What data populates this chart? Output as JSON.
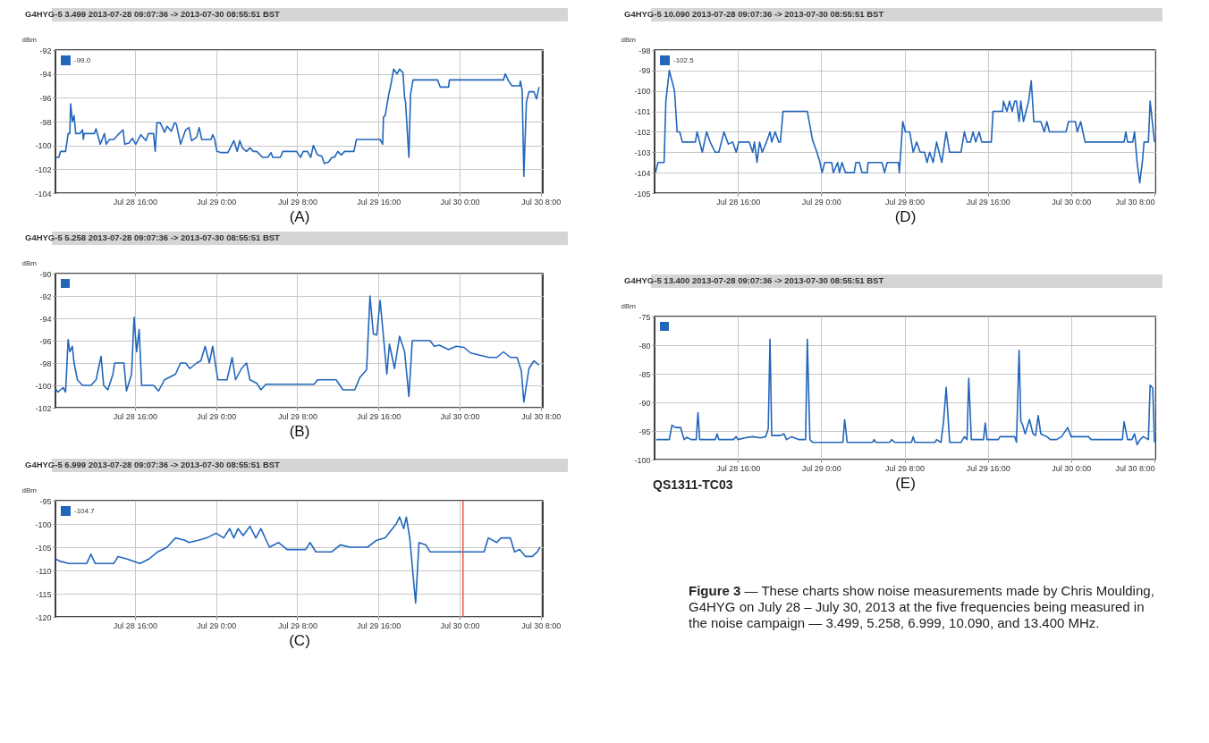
{
  "chart_data": [
    {
      "type": "line",
      "title": "G4HYG-5 3.499 2013-07-28 09:07:36 -> 2013-07-30 08:55:51 BST",
      "ylabel": "dBm",
      "xlabel": "(A)",
      "grid": true,
      "legend": "top left",
      "xlim": [
        "2013-07-28T08:10",
        "2013-07-30T08:12"
      ],
      "ylim": [
        -104,
        -92
      ],
      "yticks": [
        -104,
        -102,
        -100,
        -98,
        -96,
        -94,
        -92
      ],
      "xticks": [
        {
          "value": "2013-07-28T16:00",
          "label": "Jul 28 16:00"
        },
        {
          "value": "2013-07-29T00:00",
          "label": "Jul 29 0:00"
        },
        {
          "value": "2013-07-29T08:00",
          "label": "Jul 29 8:00"
        },
        {
          "value": "2013-07-29T16:00",
          "label": "Jul 29 16:00"
        },
        {
          "value": "2013-07-30T00:00",
          "label": "Jul 30 0:00"
        },
        {
          "value": "2013-07-30T08:00",
          "label": "Jul 30 8:00"
        }
      ],
      "series": [
        {
          "name": "-99.0",
          "color": "#2266bb",
          "x": [
            "2013-07-28T08:10",
            "2013-07-28T08:30",
            "2013-07-28T08:40",
            "2013-07-28T09:10",
            "2013-07-28T09:25",
            "2013-07-28T09:35",
            "2013-07-28T09:40",
            "2013-07-28T09:50",
            "2013-07-28T10:00",
            "2013-07-28T10:10",
            "2013-07-28T10:35",
            "2013-07-28T10:50",
            "2013-07-28T10:55",
            "2013-07-28T11:00",
            "2013-07-28T12:00",
            "2013-07-28T12:10",
            "2013-07-28T12:35",
            "2013-07-28T13:00",
            "2013-07-28T13:10",
            "2013-07-28T13:30",
            "2013-07-28T13:55",
            "2013-07-28T14:20",
            "2013-07-28T14:50",
            "2013-07-28T15:00",
            "2013-07-28T15:25",
            "2013-07-28T15:45",
            "2013-07-28T16:05",
            "2013-07-28T16:35",
            "2013-07-28T17:05",
            "2013-07-28T17:20",
            "2013-07-28T17:50",
            "2013-07-28T18:00",
            "2013-07-28T18:10",
            "2013-07-28T18:30",
            "2013-07-28T18:55",
            "2013-07-28T19:10",
            "2013-07-28T19:35",
            "2013-07-28T19:55",
            "2013-07-28T20:05",
            "2013-07-28T20:30",
            "2013-07-28T21:00",
            "2013-07-28T21:20",
            "2013-07-28T21:35",
            "2013-07-28T22:05",
            "2013-07-28T22:20",
            "2013-07-28T22:35",
            "2013-07-28T23:30",
            "2013-07-28T23:40",
            "2013-07-28T23:50",
            "2013-07-29T00:05",
            "2013-07-29T00:30",
            "2013-07-29T01:10",
            "2013-07-29T01:45",
            "2013-07-29T02:05",
            "2013-07-29T02:20",
            "2013-07-29T02:35",
            "2013-07-29T03:00",
            "2013-07-29T03:20",
            "2013-07-29T03:40",
            "2013-07-29T04:00",
            "2013-07-29T04:35",
            "2013-07-29T05:05",
            "2013-07-29T05:25",
            "2013-07-29T05:35",
            "2013-07-29T06:20",
            "2013-07-29T06:35",
            "2013-07-29T07:55",
            "2013-07-29T08:20",
            "2013-07-29T08:35",
            "2013-07-29T09:00",
            "2013-07-29T09:20",
            "2013-07-29T09:35",
            "2013-07-29T10:00",
            "2013-07-29T10:25",
            "2013-07-29T10:40",
            "2013-07-29T11:05",
            "2013-07-29T11:25",
            "2013-07-29T11:40",
            "2013-07-29T12:00",
            "2013-07-29T12:20",
            "2013-07-29T12:40",
            "2013-07-29T13:35",
            "2013-07-29T13:50",
            "2013-07-29T16:10",
            "2013-07-29T16:25",
            "2013-07-29T16:30",
            "2013-07-29T16:40",
            "2013-07-29T17:00",
            "2013-07-29T17:15",
            "2013-07-29T17:30",
            "2013-07-29T17:50",
            "2013-07-29T18:05",
            "2013-07-29T18:25",
            "2013-07-29T18:35",
            "2013-07-29T18:40",
            "2013-07-29T19:00",
            "2013-07-29T19:10",
            "2013-07-29T19:25",
            "2013-07-29T21:50",
            "2013-07-29T22:05",
            "2013-07-29T22:55",
            "2013-07-29T23:00",
            "2013-07-30T04:20",
            "2013-07-30T04:30",
            "2013-07-30T04:50",
            "2013-07-30T05:10",
            "2013-07-30T05:55",
            "2013-07-30T06:00",
            "2013-07-30T06:10",
            "2013-07-30T06:20",
            "2013-07-30T06:35",
            "2013-07-30T06:50",
            "2013-07-30T07:20",
            "2013-07-30T07:35",
            "2013-07-30T07:50"
          ],
          "values": [
            -101.0,
            -101.0,
            -100.5,
            -100.5,
            -99.0,
            -99.0,
            -96.5,
            -98.0,
            -97.5,
            -99.0,
            -99.0,
            -98.7,
            -99.5,
            -99.0,
            -99.0,
            -98.6,
            -99.9,
            -99.0,
            -99.9,
            -99.5,
            -99.5,
            -99.1,
            -98.7,
            -99.9,
            -99.8,
            -99.4,
            -99.9,
            -99.1,
            -99.6,
            -99.0,
            -99.0,
            -100.5,
            -98.1,
            -98.1,
            -98.9,
            -98.4,
            -98.8,
            -98.1,
            -98.2,
            -99.9,
            -98.7,
            -98.5,
            -99.6,
            -99.3,
            -98.5,
            -99.5,
            -99.5,
            -99.1,
            -99.4,
            -100.5,
            -100.6,
            -100.6,
            -99.6,
            -100.5,
            -99.6,
            -100.2,
            -100.5,
            -100.2,
            -100.5,
            -100.5,
            -101.0,
            -101.0,
            -100.6,
            -101.0,
            -101.0,
            -100.5,
            -100.5,
            -101.0,
            -100.5,
            -100.5,
            -101.0,
            -100.0,
            -100.8,
            -100.9,
            -101.5,
            -101.4,
            -101.0,
            -101.0,
            -100.5,
            -100.8,
            -100.5,
            -100.5,
            -99.5,
            -99.5,
            -99.9,
            -97.6,
            -97.5,
            -95.8,
            -94.8,
            -93.6,
            -94.0,
            -93.6,
            -93.9,
            -96.0,
            -96.3,
            -101.0,
            -95.7,
            -94.5,
            -94.5,
            -95.1,
            -95.1,
            -94.5,
            -94.5,
            -94.0,
            -94.6,
            -95.0,
            -95.0,
            -94.6,
            -95.4,
            -102.6,
            -96.4,
            -95.5,
            -95.5,
            -96.1,
            -95.1
          ]
        }
      ]
    },
    {
      "type": "line",
      "title": "G4HYG-5 5.258 2013-07-28 09:07:36 -> 2013-07-30 08:55:51 BST",
      "ylabel": "dBm",
      "xlabel": "(B)",
      "grid": true,
      "xlim": [
        "2013-07-28T08:10",
        "2013-07-30T08:12"
      ],
      "ylim": [
        -102,
        -90
      ],
      "yticks": [
        -102,
        -100,
        -98,
        -96,
        -94,
        -92,
        -90
      ],
      "xticks": [
        {
          "value": "2013-07-28T16:00",
          "label": "Jul 28 16:00"
        },
        {
          "value": "2013-07-29T00:00",
          "label": "Jul 29 0:00"
        },
        {
          "value": "2013-07-29T08:00",
          "label": "Jul 29 8:00"
        },
        {
          "value": "2013-07-29T16:00",
          "label": "Jul 29 16:00"
        },
        {
          "value": "2013-07-30T00:00",
          "label": "Jul 30 0:00"
        },
        {
          "value": "2013-07-30T08:00",
          "label": "Jul 30 8:00"
        }
      ],
      "series": [
        {
          "color": "#2266bb",
          "x": [
            "2013-07-28T08:10",
            "2013-07-28T08:25",
            "2013-07-28T08:55",
            "2013-07-28T09:10",
            "2013-07-28T09:25",
            "2013-07-28T09:35",
            "2013-07-28T09:50",
            "2013-07-28T10:00",
            "2013-07-28T10:20",
            "2013-07-28T10:50",
            "2013-07-28T11:40",
            "2013-07-28T12:10",
            "2013-07-28T12:40",
            "2013-07-28T12:55",
            "2013-07-28T13:20",
            "2013-07-28T13:50",
            "2013-07-28T14:00",
            "2013-07-28T14:55",
            "2013-07-28T15:10",
            "2013-07-28T15:40",
            "2013-07-28T15:55",
            "2013-07-28T16:10",
            "2013-07-28T16:25",
            "2013-07-28T16:40",
            "2013-07-28T17:50",
            "2013-07-28T18:20",
            "2013-07-28T18:55",
            "2013-07-28T20:00",
            "2013-07-28T20:30",
            "2013-07-28T21:00",
            "2013-07-28T21:25",
            "2013-07-28T22:05",
            "2013-07-28T22:30",
            "2013-07-28T22:55",
            "2013-07-28T23:20",
            "2013-07-28T23:40",
            "2013-07-29T00:10",
            "2013-07-29T01:05",
            "2013-07-29T01:35",
            "2013-07-29T01:55",
            "2013-07-29T02:30",
            "2013-07-29T03:00",
            "2013-07-29T03:20",
            "2013-07-29T04:00",
            "2013-07-29T04:25",
            "2013-07-29T04:55",
            "2013-07-29T09:40",
            "2013-07-29T10:00",
            "2013-07-29T11:50",
            "2013-07-29T12:30",
            "2013-07-29T13:40",
            "2013-07-29T14:10",
            "2013-07-29T14:50",
            "2013-07-29T15:10",
            "2013-07-29T15:30",
            "2013-07-29T15:50",
            "2013-07-29T16:10",
            "2013-07-29T16:30",
            "2013-07-29T16:50",
            "2013-07-29T17:05",
            "2013-07-29T17:35",
            "2013-07-29T18:05",
            "2013-07-29T18:35",
            "2013-07-29T19:00",
            "2013-07-29T19:20",
            "2013-07-29T21:05",
            "2013-07-29T21:30",
            "2013-07-29T22:00",
            "2013-07-29T22:55",
            "2013-07-29T23:40",
            "2013-07-30T00:25",
            "2013-07-30T01:05",
            "2013-07-30T02:55",
            "2013-07-30T03:40",
            "2013-07-30T04:20",
            "2013-07-30T05:00",
            "2013-07-30T05:40",
            "2013-07-30T06:05",
            "2013-07-30T06:20",
            "2013-07-30T06:50",
            "2013-07-30T07:20",
            "2013-07-30T07:50"
          ],
          "values": [
            -100.3,
            -100.6,
            -100.2,
            -100.6,
            -95.9,
            -97.0,
            -96.5,
            -98.0,
            -99.5,
            -100.0,
            -100.0,
            -99.5,
            -97.4,
            -100.0,
            -100.4,
            -99.0,
            -98.0,
            -98.0,
            -100.5,
            -99.0,
            -93.9,
            -97.0,
            -95.0,
            -100.0,
            -100.0,
            -100.5,
            -99.5,
            -99.0,
            -98.0,
            -98.0,
            -98.5,
            -98.0,
            -97.8,
            -96.5,
            -98.0,
            -96.5,
            -99.5,
            -99.5,
            -97.5,
            -99.5,
            -98.5,
            -98.0,
            -99.5,
            -99.8,
            -100.4,
            -99.9,
            -99.9,
            -99.5,
            -99.5,
            -100.4,
            -100.4,
            -99.3,
            -98.6,
            -92.0,
            -95.4,
            -95.5,
            -92.4,
            -95.7,
            -99.0,
            -96.3,
            -98.5,
            -95.6,
            -97.0,
            -101.0,
            -96.0,
            -96.0,
            -96.5,
            -96.4,
            -96.8,
            -96.5,
            -96.6,
            -97.1,
            -97.5,
            -97.5,
            -97.0,
            -97.5,
            -97.5,
            -98.7,
            -101.5,
            -98.5,
            -97.8,
            -98.2
          ]
        }
      ]
    },
    {
      "type": "line",
      "title": "G4HYG-5 6.999 2013-07-28 09:07:36 -> 2013-07-30 08:55:51 BST",
      "ylabel": "dBm",
      "xlabel": "(C)",
      "grid": true,
      "legend": "top left",
      "xlim": [
        "2013-07-28T08:10",
        "2013-07-30T08:12"
      ],
      "ylim": [
        -120,
        -95
      ],
      "yticks": [
        -120,
        -115,
        -110,
        -105,
        -100,
        -95
      ],
      "xticks": [
        {
          "value": "2013-07-28T16:00",
          "label": "Jul 28 16:00"
        },
        {
          "value": "2013-07-29T00:00",
          "label": "Jul 29 0:00"
        },
        {
          "value": "2013-07-29T08:00",
          "label": "Jul 29 8:00"
        },
        {
          "value": "2013-07-29T16:00",
          "label": "Jul 29 16:00"
        },
        {
          "value": "2013-07-30T00:00",
          "label": "Jul 30 0:00"
        },
        {
          "value": "2013-07-30T08:00",
          "label": "Jul 30 8:00"
        }
      ],
      "ref_lines": [
        {
          "axis": "x",
          "value": "2013-07-30T00:20",
          "color": "#e8534a"
        }
      ],
      "series": [
        {
          "name": "-104.7",
          "color": "#2266bb",
          "x": [
            "2013-07-28T08:10",
            "2013-07-28T08:35",
            "2013-07-28T09:30",
            "2013-07-28T11:15",
            "2013-07-28T11:40",
            "2013-07-28T12:05",
            "2013-07-28T13:55",
            "2013-07-28T14:20",
            "2013-07-28T15:10",
            "2013-07-28T16:30",
            "2013-07-28T17:25",
            "2013-07-28T18:15",
            "2013-07-28T19:10",
            "2013-07-28T19:35",
            "2013-07-28T20:00",
            "2013-07-28T20:55",
            "2013-07-28T21:20",
            "2013-07-28T22:15",
            "2013-07-28T23:05",
            "2013-07-29T00:00",
            "2013-07-29T00:45",
            "2013-07-29T01:20",
            "2013-07-29T01:45",
            "2013-07-29T02:10",
            "2013-07-29T02:40",
            "2013-07-29T03:20",
            "2013-07-29T03:55",
            "2013-07-29T04:25",
            "2013-07-29T05:15",
            "2013-07-29T06:10",
            "2013-07-29T07:00",
            "2013-07-29T08:50",
            "2013-07-29T09:15",
            "2013-07-29T09:50",
            "2013-07-29T11:25",
            "2013-07-29T12:15",
            "2013-07-29T13:10",
            "2013-07-29T14:55",
            "2013-07-29T15:50",
            "2013-07-29T16:40",
            "2013-07-29T17:45",
            "2013-07-29T18:05",
            "2013-07-29T18:30",
            "2013-07-29T18:45",
            "2013-07-29T19:05",
            "2013-07-29T19:40",
            "2013-07-29T20:00",
            "2013-07-29T20:40",
            "2013-07-29T21:05",
            "2013-07-29T22:50",
            "2013-07-29T23:45",
            "2013-07-30T02:25",
            "2013-07-30T02:50",
            "2013-07-30T03:40",
            "2013-07-30T04:05",
            "2013-07-30T05:00",
            "2013-07-30T05:25",
            "2013-07-30T05:55",
            "2013-07-30T06:30",
            "2013-07-30T07:10",
            "2013-07-30T07:40",
            "2013-07-30T07:55"
          ],
          "values": [
            -107.5,
            -108.0,
            -108.5,
            -108.5,
            -106.5,
            -108.5,
            -108.5,
            -107.0,
            -107.5,
            -108.5,
            -107.5,
            -106.0,
            -105.0,
            -104.0,
            -103.0,
            -103.5,
            -104.0,
            -103.5,
            -103.0,
            -102.0,
            -103.0,
            -101.0,
            -103.0,
            -101.0,
            -102.5,
            -100.5,
            -103.0,
            -101.0,
            -105.0,
            -104.0,
            -105.5,
            -105.5,
            -104.0,
            -106.0,
            -106.0,
            -104.5,
            -105.0,
            -105.0,
            -103.5,
            -103.0,
            -100.0,
            -98.5,
            -101.0,
            -98.5,
            -103.0,
            -117.0,
            -104.0,
            -104.5,
            -106.0,
            -106.0,
            -106.0,
            -106.0,
            -103.0,
            -104.0,
            -103.0,
            -103.0,
            -106.0,
            -105.5,
            -107.0,
            -107.0,
            -106.0,
            -105.0
          ]
        }
      ]
    },
    {
      "type": "line",
      "title": "G4HYG-5 10.090 2013-07-28 09:07:36 -> 2013-07-30 08:55:51 BST",
      "ylabel": "dBm",
      "xlabel": "(D)",
      "grid": true,
      "legend": "top left",
      "xlim": [
        "2013-07-28T08:00",
        "2013-07-30T08:05"
      ],
      "ylim": [
        -105,
        -98
      ],
      "yticks": [
        -105,
        -104,
        -103,
        -102,
        -101,
        -100,
        -99,
        -98
      ],
      "xticks": [
        {
          "value": "2013-07-28T16:00",
          "label": "Jul 28 16:00"
        },
        {
          "value": "2013-07-29T00:00",
          "label": "Jul 29 0:00"
        },
        {
          "value": "2013-07-29T08:00",
          "label": "Jul 29 8:00"
        },
        {
          "value": "2013-07-29T16:00",
          "label": "Jul 29 16:00"
        },
        {
          "value": "2013-07-30T00:00",
          "label": "Jul 30 0:00"
        },
        {
          "value": "2013-07-30T08:00",
          "label": "Jul 30 8:00"
        }
      ],
      "series": [
        {
          "name": "-102.5",
          "color": "#2266bb",
          "x": [
            "2013-07-28T08:05",
            "2013-07-28T08:20",
            "2013-07-28T08:55",
            "2013-07-28T09:05",
            "2013-07-28T09:25",
            "2013-07-28T09:40",
            "2013-07-28T09:55",
            "2013-07-28T10:10",
            "2013-07-28T10:25",
            "2013-07-28T10:40",
            "2013-07-28T11:55",
            "2013-07-28T12:05",
            "2013-07-28T12:35",
            "2013-07-28T13:00",
            "2013-07-28T13:20",
            "2013-07-28T13:50",
            "2013-07-28T14:10",
            "2013-07-28T14:40",
            "2013-07-28T15:05",
            "2013-07-28T15:30",
            "2013-07-28T15:50",
            "2013-07-28T16:05",
            "2013-07-28T17:05",
            "2013-07-28T17:25",
            "2013-07-28T17:35",
            "2013-07-28T17:50",
            "2013-07-28T18:05",
            "2013-07-28T18:20",
            "2013-07-28T18:45",
            "2013-07-28T19:05",
            "2013-07-28T19:15",
            "2013-07-28T19:35",
            "2013-07-28T19:55",
            "2013-07-28T20:05",
            "2013-07-28T20:20",
            "2013-07-28T22:40",
            "2013-07-28T23:10",
            "2013-07-28T23:35",
            "2013-07-28T23:50",
            "2013-07-29T00:05",
            "2013-07-29T00:20",
            "2013-07-29T01:00",
            "2013-07-29T01:10",
            "2013-07-29T01:35",
            "2013-07-29T01:45",
            "2013-07-29T02:00",
            "2013-07-29T02:20",
            "2013-07-29T03:10",
            "2013-07-29T03:20",
            "2013-07-29T03:40",
            "2013-07-29T03:55",
            "2013-07-29T04:25",
            "2013-07-29T04:30",
            "2013-07-29T05:50",
            "2013-07-29T06:05",
            "2013-07-29T06:20",
            "2013-07-29T07:25",
            "2013-07-29T07:30",
            "2013-07-29T07:50",
            "2013-07-29T08:05",
            "2013-07-29T08:30",
            "2013-07-29T08:50",
            "2013-07-29T09:10",
            "2013-07-29T09:30",
            "2013-07-29T09:55",
            "2013-07-29T10:10",
            "2013-07-29T10:25",
            "2013-07-29T10:45",
            "2013-07-29T11:05",
            "2013-07-29T11:25",
            "2013-07-29T11:35",
            "2013-07-29T12:00",
            "2013-07-29T12:20",
            "2013-07-29T13:25",
            "2013-07-29T13:45",
            "2013-07-29T14:00",
            "2013-07-29T14:20",
            "2013-07-29T14:35",
            "2013-07-29T14:50",
            "2013-07-29T15:10",
            "2013-07-29T15:25",
            "2013-07-29T16:20",
            "2013-07-29T16:30",
            "2013-07-29T17:25",
            "2013-07-29T17:30",
            "2013-07-29T17:50",
            "2013-07-29T18:05",
            "2013-07-29T18:20",
            "2013-07-29T18:35",
            "2013-07-29T18:45",
            "2013-07-29T19:00",
            "2013-07-29T19:10",
            "2013-07-29T19:25",
            "2013-07-29T19:40",
            "2013-07-29T19:55",
            "2013-07-29T20:10",
            "2013-07-29T20:25",
            "2013-07-29T21:05",
            "2013-07-29T21:25",
            "2013-07-29T21:40",
            "2013-07-29T21:55",
            "2013-07-29T23:30",
            "2013-07-29T23:45",
            "2013-07-30T00:25",
            "2013-07-30T00:35",
            "2013-07-30T00:55",
            "2013-07-30T01:20",
            "2013-07-30T05:05",
            "2013-07-30T05:15",
            "2013-07-30T05:25",
            "2013-07-30T05:55",
            "2013-07-30T06:05",
            "2013-07-30T06:20",
            "2013-07-30T06:35",
            "2013-07-30T06:50",
            "2013-07-30T07:00",
            "2013-07-30T07:25",
            "2013-07-30T07:35",
            "2013-07-30T08:00"
          ],
          "values": [
            -104.0,
            -103.5,
            -103.5,
            -100.5,
            -99.0,
            -99.5,
            -100.0,
            -102.0,
            -102.0,
            -102.5,
            -102.5,
            -102.0,
            -103.0,
            -102.0,
            -102.5,
            -103.0,
            -103.0,
            -102.0,
            -102.6,
            -102.5,
            -103.0,
            -102.5,
            -102.5,
            -103.0,
            -102.5,
            -103.5,
            -102.5,
            -103.0,
            -102.5,
            -102.0,
            -102.5,
            -102.0,
            -102.5,
            -102.5,
            -101.0,
            -101.0,
            -102.4,
            -103.0,
            -103.4,
            -104.0,
            -103.5,
            -103.5,
            -104.0,
            -103.5,
            -104.0,
            -103.5,
            -104.0,
            -104.0,
            -103.5,
            -103.5,
            -104.0,
            -104.0,
            -103.5,
            -103.5,
            -104.0,
            -103.5,
            -103.5,
            -104.0,
            -101.5,
            -102.0,
            -102.0,
            -103.0,
            -102.5,
            -103.0,
            -103.0,
            -103.5,
            -103.0,
            -103.5,
            -102.5,
            -103.2,
            -103.5,
            -102.0,
            -103.0,
            -103.0,
            -102.0,
            -102.5,
            -102.5,
            -102.0,
            -102.5,
            -102.0,
            -102.5,
            -102.5,
            -101.0,
            -101.0,
            -100.5,
            -101.0,
            -100.5,
            -101.0,
            -100.5,
            -100.5,
            -101.5,
            -100.5,
            -101.5,
            -101.0,
            -100.5,
            -99.5,
            -101.5,
            -101.5,
            -102.0,
            -101.5,
            -102.0,
            -102.0,
            -101.5,
            -101.5,
            -102.0,
            -101.5,
            -102.5,
            -102.5,
            -102.0,
            -102.5,
            -102.5,
            -102.0,
            -103.5,
            -104.5,
            -103.5,
            -102.5,
            -102.5,
            -100.5,
            -102.5
          ]
        }
      ]
    },
    {
      "type": "line",
      "title": "G4HYG-5 13.400 2013-07-28 09:07:36 -> 2013-07-30 08:55:51 BST",
      "ylabel": "dBm",
      "xlabel": "(E)",
      "grid": true,
      "annotations": [
        "QS1311-TC03"
      ],
      "xlim": [
        "2013-07-28T08:00",
        "2013-07-30T08:05"
      ],
      "ylim": [
        -100,
        -75
      ],
      "yticks": [
        -100,
        -95,
        -90,
        -85,
        -80,
        -75
      ],
      "xticks": [
        {
          "value": "2013-07-28T16:00",
          "label": "Jul 28 16:00"
        },
        {
          "value": "2013-07-29T00:00",
          "label": "Jul 29 0:00"
        },
        {
          "value": "2013-07-29T08:00",
          "label": "Jul 29 8:00"
        },
        {
          "value": "2013-07-29T16:00",
          "label": "Jul 29 16:00"
        },
        {
          "value": "2013-07-30T00:00",
          "label": "Jul 30 0:00"
        },
        {
          "value": "2013-07-30T08:00",
          "label": "Jul 30 8:00"
        }
      ],
      "series": [
        {
          "color": "#2266bb",
          "x": [
            "2013-07-28T08:10",
            "2013-07-28T09:25",
            "2013-07-28T09:40",
            "2013-07-28T10:00",
            "2013-07-28T10:30",
            "2013-07-28T10:50",
            "2013-07-28T11:05",
            "2013-07-28T11:30",
            "2013-07-28T12:00",
            "2013-07-28T12:10",
            "2013-07-28T12:20",
            "2013-07-28T13:50",
            "2013-07-28T14:00",
            "2013-07-28T14:10",
            "2013-07-28T15:35",
            "2013-07-28T15:50",
            "2013-07-28T16:00",
            "2013-07-28T16:40",
            "2013-07-28T17:25",
            "2013-07-28T18:10",
            "2013-07-28T18:40",
            "2013-07-28T18:55",
            "2013-07-28T19:05",
            "2013-07-28T19:15",
            "2013-07-28T20:05",
            "2013-07-28T20:25",
            "2013-07-28T20:40",
            "2013-07-28T21:10",
            "2013-07-28T21:50",
            "2013-07-28T22:30",
            "2013-07-28T22:40",
            "2013-07-28T22:55",
            "2013-07-28T23:10",
            "2013-07-29T02:05",
            "2013-07-29T02:15",
            "2013-07-29T02:30",
            "2013-07-29T04:55",
            "2013-07-29T05:05",
            "2013-07-29T05:15",
            "2013-07-29T06:35",
            "2013-07-29T06:45",
            "2013-07-29T07:05",
            "2013-07-29T08:40",
            "2013-07-29T08:50",
            "2013-07-29T09:00",
            "2013-07-29T10:55",
            "2013-07-29T11:05",
            "2013-07-29T11:30",
            "2013-07-29T11:45",
            "2013-07-29T12:00",
            "2013-07-29T12:20",
            "2013-07-29T13:25",
            "2013-07-29T13:45",
            "2013-07-29T14:00",
            "2013-07-29T14:10",
            "2013-07-29T14:25",
            "2013-07-29T15:35",
            "2013-07-29T15:45",
            "2013-07-29T15:55",
            "2013-07-29T17:00",
            "2013-07-29T17:10",
            "2013-07-29T18:35",
            "2013-07-29T18:45",
            "2013-07-29T19:00",
            "2013-07-29T19:10",
            "2013-07-29T19:20",
            "2013-07-29T19:35",
            "2013-07-29T20:00",
            "2013-07-29T20:20",
            "2013-07-29T20:35",
            "2013-07-29T20:50",
            "2013-07-29T21:05",
            "2013-07-29T21:40",
            "2013-07-29T22:00",
            "2013-07-29T22:35",
            "2013-07-29T23:05",
            "2013-07-29T23:40",
            "2013-07-30T00:00",
            "2013-07-30T01:40",
            "2013-07-30T01:55",
            "2013-07-30T04:55",
            "2013-07-30T05:05",
            "2013-07-30T05:25",
            "2013-07-30T05:50",
            "2013-07-30T06:05",
            "2013-07-30T06:20",
            "2013-07-30T06:35",
            "2013-07-30T06:55",
            "2013-07-30T07:25",
            "2013-07-30T07:35",
            "2013-07-30T07:50",
            "2013-07-30T08:00"
          ],
          "values": [
            -96.5,
            -96.5,
            -94.0,
            -94.4,
            -94.4,
            -96.5,
            -96.1,
            -96.5,
            -96.5,
            -91.8,
            -96.5,
            -96.5,
            -95.5,
            -96.5,
            -96.5,
            -96.0,
            -96.5,
            -96.2,
            -96.0,
            -96.2,
            -96.0,
            -94.6,
            -79.0,
            -95.8,
            -95.8,
            -95.5,
            -96.5,
            -96.0,
            -96.5,
            -96.5,
            -79.0,
            -96.5,
            -97.0,
            -97.0,
            -93.0,
            -97.0,
            -97.0,
            -96.5,
            -97.0,
            -97.0,
            -96.5,
            -97.0,
            -97.0,
            -96.0,
            -97.0,
            -97.0,
            -96.5,
            -97.0,
            -93.3,
            -87.4,
            -97.0,
            -97.0,
            -96.0,
            -96.5,
            -85.8,
            -96.5,
            -96.5,
            -93.6,
            -96.5,
            -96.5,
            -96.0,
            -96.0,
            -97.0,
            -80.9,
            -93.3,
            -93.9,
            -95.5,
            -93.0,
            -95.5,
            -95.8,
            -92.3,
            -95.5,
            -96.0,
            -96.5,
            -96.5,
            -96.0,
            -94.4,
            -96.0,
            -96.0,
            -96.5,
            -96.5,
            -93.4,
            -96.5,
            -96.5,
            -95.5,
            -97.4,
            -96.6,
            -96.0,
            -96.5,
            -87.0,
            -87.5,
            -97.0
          ]
        }
      ]
    },
    {
      "type": "other",
      "title": "Figure 3",
      "annotations": [
        "— These charts show noise measurements made by Chris Moulding, G4HYG on July 28 – July 30, 2013 at the five frequencies being measured in the noise campaign — 3.499, 5.258, 6.999, 10.090, and 13.400 MHz."
      ]
    }
  ]
}
